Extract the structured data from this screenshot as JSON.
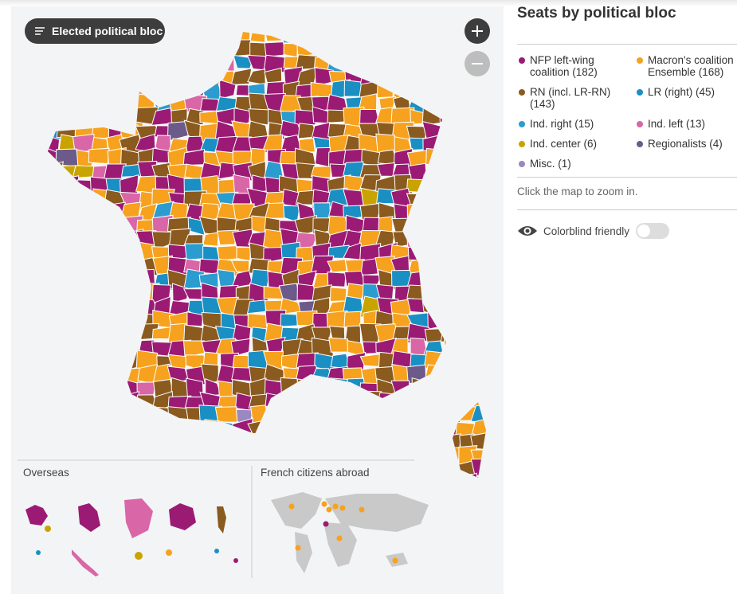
{
  "filter_button": "Elected political bloc",
  "panel": {
    "title": "Seats by political bloc",
    "legend": [
      {
        "label": "NFP left-wing coalition (182)",
        "color": "#9b1b74"
      },
      {
        "label": "Macron's coalition Ensemble (168)",
        "color": "#f6a21e"
      },
      {
        "label": "RN (incl. LR-RN) (143)",
        "color": "#8a5a1f"
      },
      {
        "label": "LR (right) (45)",
        "color": "#1a8fc4"
      },
      {
        "label": "Ind. right (15)",
        "color": "#2b9ccf"
      },
      {
        "label": "Ind. left (13)",
        "color": "#d966a6"
      },
      {
        "label": "Ind. center (6)",
        "color": "#c9a400"
      },
      {
        "label": "Regionalists (4)",
        "color": "#6c5a8a"
      },
      {
        "label": "Misc. (1)",
        "color": "#9a88c0"
      }
    ],
    "hint": "Click the map to zoom in.",
    "toggle_label": "Colorblind friendly"
  },
  "sections": {
    "overseas": "Overseas",
    "abroad": "French citizens abroad"
  }
}
